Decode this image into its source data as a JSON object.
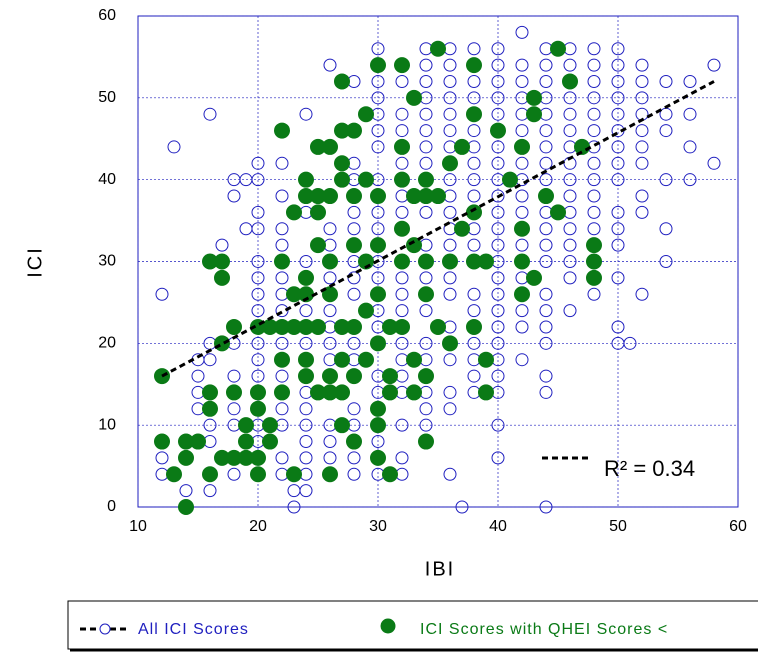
{
  "chart_data": {
    "type": "scatter",
    "x_label": "IBI",
    "y_label": "ICI",
    "xlim": [
      10,
      60
    ],
    "xticks": [
      10,
      20,
      30,
      40,
      50,
      60
    ],
    "ylim": [
      0,
      60
    ],
    "yticks": [
      0,
      10,
      20,
      30,
      40,
      50,
      60
    ],
    "grid": true,
    "annotation": "R² = 0.34",
    "trend": {
      "x": [
        12,
        58
      ],
      "values": [
        16,
        52
      ],
      "color": "#000000"
    },
    "series": [
      {
        "name": "All ICI Scores",
        "color": "#1f1fbf",
        "filled": false,
        "x": [
          42,
          30,
          34,
          36,
          38,
          40,
          44,
          46,
          48,
          50,
          26,
          32,
          34,
          36,
          38,
          40,
          42,
          44,
          46,
          48,
          50,
          52,
          58,
          28,
          30,
          32,
          34,
          36,
          38,
          40,
          42,
          44,
          46,
          48,
          50,
          52,
          54,
          56,
          30,
          34,
          36,
          38,
          40,
          42,
          44,
          46,
          48,
          50,
          52,
          16,
          24,
          30,
          32,
          34,
          36,
          38,
          40,
          42,
          44,
          46,
          48,
          50,
          52,
          54,
          56,
          22,
          30,
          32,
          34,
          36,
          38,
          40,
          42,
          44,
          46,
          48,
          50,
          52,
          54,
          13,
          26,
          30,
          34,
          36,
          38,
          40,
          42,
          44,
          46,
          48,
          50,
          52,
          56,
          20,
          22,
          28,
          32,
          34,
          36,
          38,
          40,
          42,
          44,
          46,
          48,
          50,
          52,
          58,
          18,
          19,
          20,
          24,
          28,
          30,
          34,
          36,
          38,
          40,
          42,
          44,
          46,
          48,
          50,
          54,
          56,
          18,
          22,
          26,
          30,
          32,
          34,
          36,
          38,
          40,
          42,
          44,
          46,
          48,
          52,
          20,
          24,
          28,
          30,
          32,
          34,
          36,
          38,
          40,
          42,
          44,
          46,
          48,
          50,
          52,
          19,
          20,
          22,
          26,
          28,
          30,
          32,
          36,
          38,
          40,
          42,
          44,
          46,
          48,
          50,
          54,
          17,
          22,
          26,
          28,
          30,
          34,
          36,
          38,
          40,
          42,
          44,
          46,
          50,
          16,
          20,
          22,
          24,
          26,
          28,
          30,
          32,
          34,
          36,
          38,
          40,
          42,
          44,
          46,
          48,
          54,
          20,
          22,
          24,
          26,
          28,
          30,
          32,
          34,
          36,
          40,
          42,
          46,
          50,
          12,
          20,
          22,
          26,
          28,
          30,
          32,
          34,
          36,
          38,
          40,
          44,
          48,
          52,
          20,
          22,
          24,
          26,
          30,
          32,
          34,
          38,
          40,
          42,
          44,
          46,
          18,
          20,
          24,
          26,
          28,
          30,
          32,
          36,
          38,
          40,
          42,
          44,
          50,
          16,
          18,
          20,
          22,
          24,
          26,
          28,
          30,
          32,
          34,
          38,
          40,
          44,
          50,
          51,
          15,
          16,
          20,
          22,
          24,
          26,
          28,
          32,
          34,
          36,
          38,
          40,
          42,
          15,
          18,
          20,
          22,
          24,
          26,
          28,
          30,
          32,
          34,
          38,
          40,
          44,
          15,
          20,
          22,
          24,
          26,
          30,
          32,
          34,
          36,
          38,
          40,
          44,
          15,
          18,
          20,
          22,
          24,
          28,
          30,
          34,
          36,
          16,
          18,
          20,
          22,
          24,
          26,
          28,
          30,
          32,
          34,
          40,
          12,
          16,
          20,
          24,
          26,
          28,
          30,
          12,
          14,
          18,
          22,
          24,
          26,
          28,
          32,
          40,
          12,
          16,
          18,
          22,
          24,
          26,
          28,
          30,
          32,
          36,
          14,
          16,
          23,
          24,
          23,
          37,
          44
        ],
        "values": [
          58,
          56,
          56,
          56,
          56,
          56,
          56,
          56,
          56,
          56,
          54,
          54,
          54,
          54,
          54,
          54,
          54,
          54,
          54,
          54,
          54,
          54,
          54,
          52,
          52,
          52,
          52,
          52,
          52,
          52,
          52,
          52,
          52,
          52,
          52,
          52,
          52,
          52,
          50,
          50,
          50,
          50,
          50,
          50,
          50,
          50,
          50,
          50,
          50,
          48,
          48,
          48,
          48,
          48,
          48,
          48,
          48,
          48,
          48,
          48,
          48,
          48,
          48,
          48,
          48,
          46,
          46,
          46,
          46,
          46,
          46,
          46,
          46,
          46,
          46,
          46,
          46,
          46,
          46,
          44,
          44,
          44,
          44,
          44,
          44,
          44,
          44,
          44,
          44,
          44,
          44,
          44,
          44,
          42,
          42,
          42,
          42,
          42,
          42,
          42,
          42,
          42,
          42,
          42,
          42,
          42,
          42,
          42,
          40,
          40,
          40,
          40,
          40,
          40,
          40,
          40,
          40,
          40,
          40,
          40,
          40,
          40,
          40,
          40,
          40,
          38,
          38,
          38,
          38,
          38,
          38,
          38,
          38,
          38,
          38,
          38,
          38,
          38,
          38,
          36,
          36,
          36,
          36,
          36,
          36,
          36,
          36,
          36,
          36,
          36,
          36,
          36,
          36,
          36,
          34,
          34,
          34,
          34,
          34,
          34,
          34,
          34,
          34,
          34,
          34,
          34,
          34,
          34,
          34,
          34,
          32,
          32,
          32,
          32,
          32,
          32,
          32,
          32,
          32,
          32,
          32,
          32,
          32,
          30,
          30,
          30,
          30,
          30,
          30,
          30,
          30,
          30,
          30,
          30,
          30,
          30,
          30,
          30,
          30,
          30,
          28,
          28,
          28,
          28,
          28,
          28,
          28,
          28,
          28,
          28,
          28,
          28,
          28,
          26,
          26,
          26,
          26,
          26,
          26,
          26,
          26,
          26,
          26,
          26,
          26,
          26,
          26,
          24,
          24,
          24,
          24,
          24,
          24,
          24,
          24,
          24,
          24,
          24,
          24,
          22,
          22,
          22,
          22,
          22,
          22,
          22,
          22,
          22,
          22,
          22,
          22,
          22,
          20,
          20,
          20,
          20,
          20,
          20,
          20,
          20,
          20,
          20,
          20,
          20,
          20,
          20,
          20,
          18,
          18,
          18,
          18,
          18,
          18,
          18,
          18,
          18,
          18,
          18,
          18,
          18,
          16,
          16,
          16,
          16,
          16,
          16,
          16,
          16,
          16,
          16,
          16,
          16,
          16,
          14,
          14,
          14,
          14,
          14,
          14,
          14,
          14,
          14,
          14,
          14,
          14,
          12,
          12,
          12,
          12,
          12,
          12,
          12,
          12,
          12,
          10,
          10,
          10,
          10,
          10,
          10,
          10,
          10,
          10,
          10,
          10,
          8,
          8,
          8,
          8,
          8,
          8,
          8,
          6,
          6,
          6,
          6,
          6,
          6,
          6,
          6,
          6,
          4,
          4,
          4,
          4,
          4,
          4,
          4,
          4,
          4,
          4,
          2,
          2,
          2,
          2,
          0,
          0,
          0
        ]
      },
      {
        "name": "ICI Scores with QHEI Scores <",
        "color": "#0a7a16",
        "filled": true,
        "x": [
          12,
          12,
          13,
          14,
          14,
          14,
          15,
          16,
          16,
          16,
          16,
          17,
          17,
          17,
          17,
          18,
          18,
          18,
          19,
          19,
          19,
          20,
          20,
          20,
          20,
          20,
          21,
          21,
          21,
          22,
          22,
          22,
          22,
          22,
          23,
          23,
          23,
          23,
          24,
          24,
          24,
          24,
          24,
          24,
          24,
          25,
          25,
          25,
          25,
          25,
          25,
          26,
          26,
          26,
          26,
          26,
          26,
          26,
          27,
          27,
          27,
          27,
          27,
          27,
          27,
          27,
          28,
          28,
          28,
          28,
          28,
          28,
          29,
          29,
          29,
          29,
          29,
          30,
          30,
          30,
          30,
          30,
          30,
          30,
          30,
          31,
          31,
          31,
          31,
          32,
          32,
          32,
          32,
          32,
          32,
          33,
          33,
          33,
          33,
          33,
          34,
          34,
          34,
          34,
          34,
          34,
          35,
          35,
          35,
          36,
          36,
          36,
          37,
          37,
          38,
          38,
          38,
          38,
          38,
          39,
          39,
          39,
          40,
          41,
          42,
          42,
          42,
          42,
          43,
          43,
          43,
          44,
          45,
          45,
          46,
          47,
          48,
          48,
          48
        ],
        "values": [
          16,
          8,
          4,
          8,
          6,
          0,
          8,
          30,
          14,
          12,
          4,
          30,
          28,
          20,
          6,
          22,
          14,
          6,
          10,
          8,
          6,
          22,
          14,
          12,
          6,
          4,
          22,
          10,
          8,
          46,
          30,
          22,
          18,
          14,
          36,
          26,
          22,
          4,
          40,
          38,
          28,
          26,
          22,
          18,
          16,
          44,
          38,
          36,
          32,
          22,
          14,
          44,
          38,
          30,
          26,
          16,
          14,
          4,
          52,
          46,
          42,
          40,
          22,
          18,
          14,
          10,
          46,
          38,
          32,
          22,
          16,
          8,
          48,
          40,
          30,
          24,
          18,
          54,
          38,
          32,
          26,
          20,
          12,
          10,
          6,
          22,
          16,
          14,
          4,
          54,
          44,
          40,
          34,
          30,
          22,
          50,
          38,
          32,
          18,
          14,
          40,
          38,
          30,
          26,
          16,
          8,
          56,
          38,
          22,
          42,
          30,
          20,
          44,
          34,
          54,
          48,
          36,
          30,
          22,
          30,
          18,
          14,
          46,
          40,
          44,
          34,
          30,
          26,
          50,
          48,
          28,
          38,
          56,
          36,
          52,
          44,
          32,
          30,
          28
        ]
      }
    ]
  }
}
